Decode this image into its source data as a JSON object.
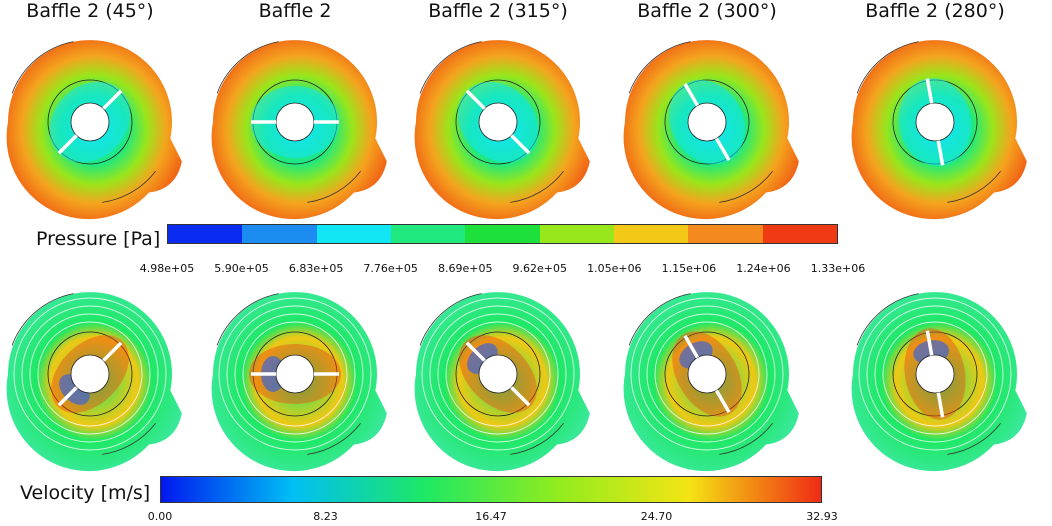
{
  "panels": [
    {
      "title": "Baffle 2 (45°)",
      "angle": 45
    },
    {
      "title": "Baffle 2",
      "angle": 0
    },
    {
      "title": "Baffle 2 (315°)",
      "angle": -45
    },
    {
      "title": "Baffle 2 (300°)",
      "angle": -60
    },
    {
      "title": "Baffle 2 (280°)",
      "angle": -80
    }
  ],
  "pressure_legend": {
    "title": "Pressure [Pa]",
    "ticks": [
      "4.98e+05",
      "5.90e+05",
      "6.83e+05",
      "7.76e+05",
      "8.69e+05",
      "9.62e+05",
      "1.05e+06",
      "1.15e+06",
      "1.24e+06",
      "1.33e+06"
    ],
    "colors": [
      "#0a2cf0",
      "#1c8cf0",
      "#12e6f4",
      "#1ee87e",
      "#1ee03a",
      "#98e61c",
      "#f4c816",
      "#f48a1e",
      "#f03a14"
    ]
  },
  "velocity_legend": {
    "title": "Velocity [m/s]",
    "ticks": [
      "0.00",
      "8.23",
      "16.47",
      "24.70",
      "32.93"
    ],
    "gradient": [
      "#0018f0",
      "#00bff4",
      "#1ee864",
      "#90ec1e",
      "#f4e414",
      "#f02a14"
    ]
  }
}
